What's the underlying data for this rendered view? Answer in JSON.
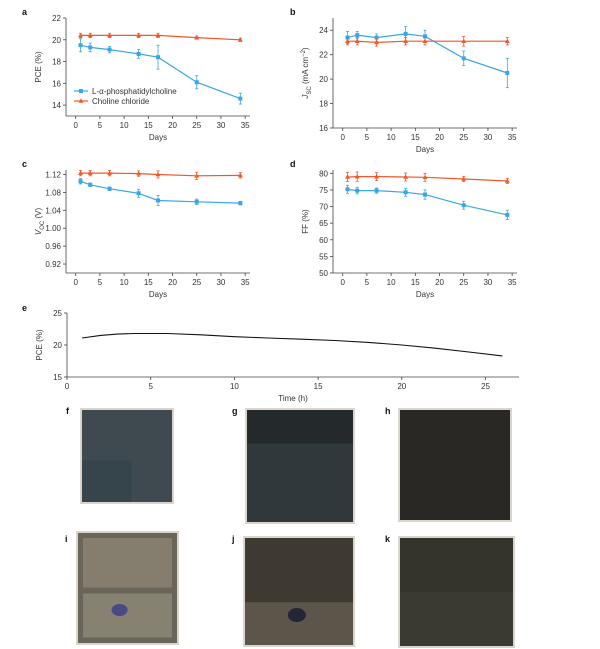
{
  "colors": {
    "phosphatidylcholine": "#3aa6e6",
    "choline_chloride": "#f0572a",
    "trace": "#111111",
    "axis": "#444444"
  },
  "legend": {
    "series_a": "L-α-phosphatidylcholine",
    "series_b": "Choline chloride"
  },
  "chart_data": [
    {
      "id": "a",
      "letter": "a",
      "type": "line",
      "xlabel": "Days",
      "ylabel": "PCE (%)",
      "xlim": [
        -2,
        36
      ],
      "ylim": [
        13,
        22
      ],
      "xticks": [
        0,
        5,
        10,
        15,
        20,
        25,
        30,
        35
      ],
      "yticks": [
        14,
        16,
        18,
        20,
        22
      ],
      "legend_position": "bottom-left",
      "series": [
        {
          "name": "L-α-phosphatidylcholine",
          "color": "#3aa6e6",
          "marker": "square",
          "x": [
            1,
            3,
            7,
            13,
            17,
            25,
            34
          ],
          "y": [
            19.5,
            19.3,
            19.1,
            18.7,
            18.4,
            16.1,
            14.6
          ],
          "err": [
            0.6,
            0.4,
            0.3,
            0.4,
            1.1,
            0.6,
            0.5
          ]
        },
        {
          "name": "Choline chloride",
          "color": "#f0572a",
          "marker": "triangle",
          "x": [
            1,
            3,
            7,
            13,
            17,
            25,
            34
          ],
          "y": [
            20.4,
            20.4,
            20.4,
            20.4,
            20.4,
            20.2,
            20.0
          ],
          "err": [
            0.2,
            0.2,
            0.2,
            0.2,
            0.2,
            0.15,
            0.15
          ]
        }
      ]
    },
    {
      "id": "b",
      "letter": "b",
      "type": "line",
      "xlabel": "Days",
      "ylabel": "J_SC (mA cm^−2)",
      "xlim": [
        -2,
        36
      ],
      "ylim": [
        16,
        25
      ],
      "xticks": [
        0,
        5,
        10,
        15,
        20,
        25,
        30,
        35
      ],
      "yticks": [
        16,
        18,
        20,
        22,
        24
      ],
      "series": [
        {
          "name": "L-α-phosphatidylcholine",
          "color": "#3aa6e6",
          "marker": "square",
          "x": [
            1,
            3,
            7,
            13,
            17,
            25,
            34
          ],
          "y": [
            23.4,
            23.6,
            23.4,
            23.7,
            23.5,
            21.7,
            20.5
          ],
          "err": [
            0.5,
            0.3,
            0.3,
            0.6,
            0.5,
            0.6,
            1.2
          ]
        },
        {
          "name": "Choline chloride",
          "color": "#f0572a",
          "marker": "triangle",
          "x": [
            1,
            3,
            7,
            13,
            17,
            25,
            34
          ],
          "y": [
            23.1,
            23.1,
            23.0,
            23.1,
            23.1,
            23.1,
            23.1
          ],
          "err": [
            0.3,
            0.3,
            0.3,
            0.3,
            0.3,
            0.4,
            0.3
          ]
        }
      ]
    },
    {
      "id": "c",
      "letter": "c",
      "type": "line",
      "xlabel": "Days",
      "ylabel": "V_OC (V)",
      "xlim": [
        -2,
        36
      ],
      "ylim": [
        0.9,
        1.13
      ],
      "xticks": [
        0,
        5,
        10,
        15,
        20,
        25,
        30,
        35
      ],
      "yticks": [
        0.92,
        0.96,
        1.0,
        1.04,
        1.08,
        1.12
      ],
      "ytick_decimals": 2,
      "series": [
        {
          "name": "L-α-phosphatidylcholine",
          "color": "#3aa6e6",
          "marker": "square",
          "x": [
            1,
            3,
            7,
            13,
            17,
            25,
            34
          ],
          "y": [
            1.105,
            1.097,
            1.088,
            1.078,
            1.062,
            1.059,
            1.056
          ],
          "err": [
            0.006,
            0.004,
            0.004,
            0.009,
            0.011,
            0.006,
            0.004
          ]
        },
        {
          "name": "Choline chloride",
          "color": "#f0572a",
          "marker": "triangle",
          "x": [
            1,
            3,
            7,
            13,
            17,
            25,
            34
          ],
          "y": [
            1.123,
            1.123,
            1.123,
            1.122,
            1.12,
            1.117,
            1.118
          ],
          "err": [
            0.006,
            0.006,
            0.006,
            0.006,
            0.008,
            0.008,
            0.006
          ]
        }
      ]
    },
    {
      "id": "d",
      "letter": "d",
      "type": "line",
      "xlabel": "Days",
      "ylabel": "FF (%)",
      "xlim": [
        -2,
        36
      ],
      "ylim": [
        50,
        81
      ],
      "xticks": [
        0,
        5,
        10,
        15,
        20,
        25,
        30,
        35
      ],
      "yticks": [
        50,
        55,
        60,
        65,
        70,
        75,
        80
      ],
      "series": [
        {
          "name": "L-α-phosphatidylcholine",
          "color": "#3aa6e6",
          "marker": "square",
          "x": [
            1,
            3,
            7,
            13,
            17,
            25,
            34
          ],
          "y": [
            75.2,
            74.8,
            74.8,
            74.3,
            73.6,
            70.4,
            67.5
          ],
          "err": [
            1.2,
            1.0,
            0.8,
            1.2,
            1.4,
            1.2,
            1.4
          ]
        },
        {
          "name": "Choline chloride",
          "color": "#f0572a",
          "marker": "triangle",
          "x": [
            1,
            3,
            7,
            13,
            17,
            25,
            34
          ],
          "y": [
            78.9,
            79.0,
            79.0,
            78.9,
            78.8,
            78.3,
            77.7
          ],
          "err": [
            1.4,
            1.4,
            1.2,
            1.2,
            1.2,
            0.8,
            0.8
          ]
        }
      ]
    },
    {
      "id": "e",
      "letter": "e",
      "type": "line",
      "xlabel": "Time (h)",
      "ylabel": "PCE (%)",
      "xlim": [
        0,
        27
      ],
      "ylim": [
        15,
        25
      ],
      "xticks": [
        0,
        5,
        10,
        15,
        20,
        25
      ],
      "yticks": [
        15,
        20,
        25
      ],
      "series": [
        {
          "name": "",
          "color": "#111111",
          "marker": "none",
          "x": [
            0.9,
            2,
            3,
            4,
            5,
            6,
            8,
            10,
            12,
            14,
            16,
            18,
            20,
            22,
            24,
            26
          ],
          "y": [
            21.1,
            21.5,
            21.7,
            21.8,
            21.8,
            21.8,
            21.6,
            21.3,
            21.1,
            20.9,
            20.7,
            20.4,
            20.0,
            19.5,
            18.9,
            18.3
          ]
        }
      ]
    }
  ],
  "photos": [
    {
      "letter": "f",
      "tone": "#3e4a50"
    },
    {
      "letter": "g",
      "tone": "#2f393c"
    },
    {
      "letter": "h",
      "tone": "#2a2825"
    },
    {
      "letter": "i",
      "tone": "#6a6559"
    },
    {
      "letter": "j",
      "tone": "#3f3a31"
    },
    {
      "letter": "k",
      "tone": "#34332c"
    }
  ]
}
